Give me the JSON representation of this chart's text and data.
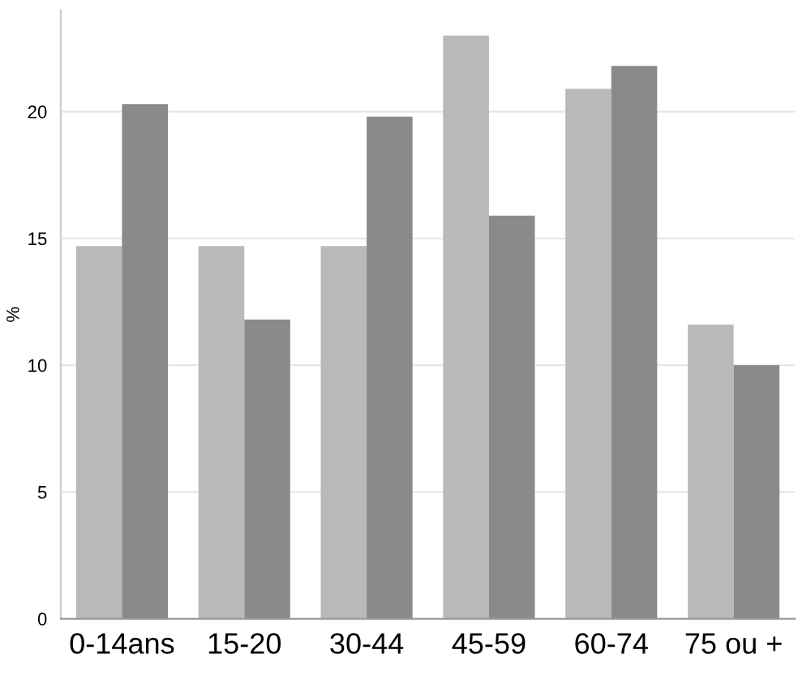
{
  "chart_data": {
    "type": "bar",
    "ylabel": "%",
    "categories": [
      "0-14ans",
      "15-20",
      "30-44",
      "45-59",
      "60-74",
      "75 ou +"
    ],
    "series": [
      {
        "color": "#b9b9b9",
        "values": [
          14.7,
          14.7,
          14.7,
          23.0,
          20.9,
          11.6
        ]
      },
      {
        "color": "#8a8a8a",
        "values": [
          20.3,
          11.8,
          19.8,
          15.9,
          21.8,
          10.0
        ]
      }
    ],
    "ylim": [
      0,
      24
    ],
    "yticks": [
      0,
      5,
      10,
      15,
      20
    ],
    "grid": "y"
  }
}
